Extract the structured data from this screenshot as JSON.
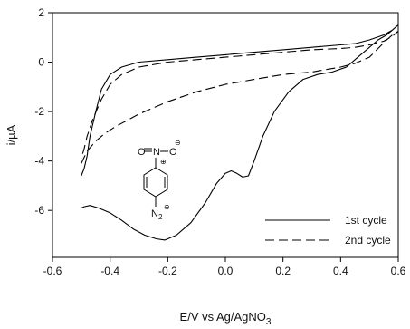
{
  "chart_data": {
    "type": "line",
    "xlabel": "E/V vs Ag/AgNO",
    "xlabel_subscript": "3",
    "ylabel": "i/µA",
    "xlim": [
      -0.6,
      0.6
    ],
    "ylim": [
      -7.9,
      2.0
    ],
    "xticks": [
      "-0.6",
      "-0.4",
      "-0.2",
      "0.0",
      "0.2",
      "0.4",
      "0.6"
    ],
    "xtick_values": [
      -0.6,
      -0.4,
      -0.2,
      0.0,
      0.2,
      0.4,
      0.6
    ],
    "yticks": [
      "2",
      "0",
      "-2",
      "-4",
      "-6"
    ],
    "ytick_values": [
      2,
      0,
      -2,
      -4,
      -6
    ],
    "grid": false,
    "legend_position": "lower-right",
    "series": [
      {
        "name": "1st cycle",
        "style": "solid",
        "x": [
          -0.5,
          -0.49,
          -0.47,
          -0.44,
          -0.4,
          -0.36,
          -0.32,
          -0.28,
          -0.24,
          -0.21,
          -0.17,
          -0.12,
          -0.07,
          -0.03,
          0.0,
          0.02,
          0.04,
          0.06,
          0.08,
          0.1,
          0.13,
          0.17,
          0.22,
          0.27,
          0.32,
          0.37,
          0.42,
          0.46,
          0.5,
          0.53,
          0.56,
          0.58,
          0.6,
          0.58,
          0.55,
          0.5,
          0.45,
          0.4,
          0.3,
          0.2,
          0.1,
          0.0,
          -0.1,
          -0.2,
          -0.3,
          -0.36,
          -0.4,
          -0.43,
          -0.45,
          -0.47,
          -0.48,
          -0.49,
          -0.5
        ],
        "y": [
          -5.9,
          -5.85,
          -5.8,
          -5.9,
          -6.1,
          -6.4,
          -6.75,
          -7.0,
          -7.15,
          -7.2,
          -7.0,
          -6.5,
          -5.7,
          -4.9,
          -4.5,
          -4.4,
          -4.5,
          -4.65,
          -4.6,
          -4.0,
          -3.0,
          -2.0,
          -1.2,
          -0.7,
          -0.5,
          -0.4,
          -0.2,
          0.2,
          0.6,
          0.9,
          1.1,
          1.3,
          1.5,
          1.3,
          1.1,
          0.9,
          0.75,
          0.7,
          0.6,
          0.5,
          0.4,
          0.3,
          0.2,
          0.1,
          0.0,
          -0.2,
          -0.5,
          -1.1,
          -2.0,
          -3.0,
          -3.8,
          -4.3,
          -4.6
        ]
      },
      {
        "name": "2nd cycle",
        "style": "dashed",
        "x": [
          -0.5,
          -0.48,
          -0.45,
          -0.42,
          -0.38,
          -0.34,
          -0.3,
          -0.25,
          -0.2,
          -0.15,
          -0.1,
          -0.05,
          0.0,
          0.05,
          0.1,
          0.15,
          0.2,
          0.25,
          0.3,
          0.35,
          0.4,
          0.45,
          0.5,
          0.53,
          0.56,
          0.58,
          0.6,
          0.58,
          0.55,
          0.5,
          0.45,
          0.4,
          0.3,
          0.2,
          0.1,
          0.0,
          -0.1,
          -0.2,
          -0.3,
          -0.36,
          -0.4,
          -0.43,
          -0.46,
          -0.48,
          -0.49,
          -0.5
        ],
        "y": [
          -4.1,
          -3.6,
          -3.2,
          -2.9,
          -2.6,
          -2.35,
          -2.1,
          -1.85,
          -1.6,
          -1.4,
          -1.2,
          -1.05,
          -0.9,
          -0.8,
          -0.7,
          -0.6,
          -0.5,
          -0.45,
          -0.4,
          -0.3,
          -0.2,
          -0.05,
          0.2,
          0.55,
          0.9,
          1.1,
          1.25,
          1.05,
          0.85,
          0.7,
          0.6,
          0.55,
          0.5,
          0.4,
          0.3,
          0.2,
          0.1,
          0.0,
          -0.2,
          -0.5,
          -0.9,
          -1.5,
          -2.3,
          -3.0,
          -3.5,
          -3.9
        ]
      }
    ],
    "inset_structure": {
      "atoms": [
        "O",
        "N",
        "O",
        "N"
      ],
      "charges": [
        "⊖",
        "⊕",
        "⊕"
      ],
      "subscript": "2"
    }
  }
}
